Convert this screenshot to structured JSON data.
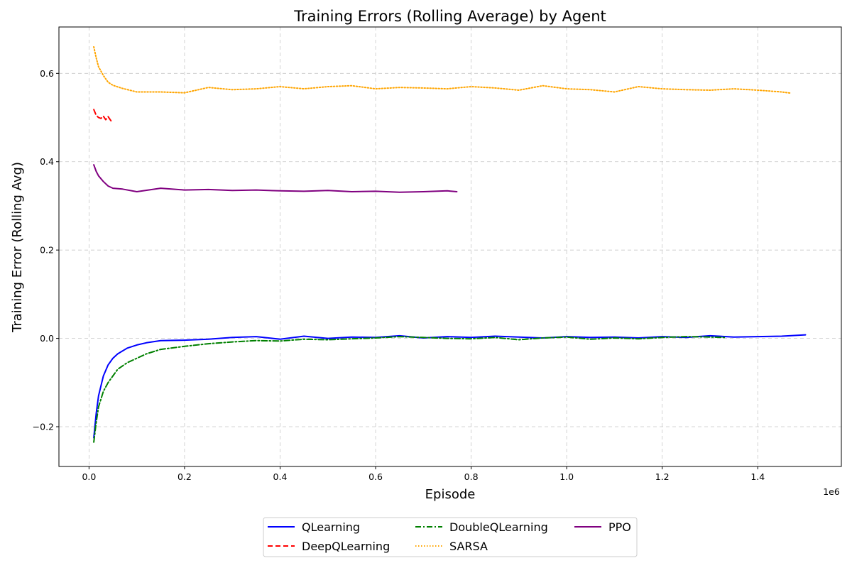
{
  "chart_data": {
    "type": "line",
    "title": "Training Errors (Rolling Average) by Agent",
    "xlabel": "Episode",
    "ylabel": "Training Error (Rolling Avg)",
    "x_offset_label": "1e6",
    "xlim": [
      -0.063,
      1.575
    ],
    "ylim": [
      -0.29,
      0.705
    ],
    "x_scale_factor": 1000000,
    "xticks": [
      0.0,
      0.2,
      0.4,
      0.6,
      0.8,
      1.0,
      1.2,
      1.4
    ],
    "xtick_labels": [
      "0.0",
      "0.2",
      "0.4",
      "0.6",
      "0.8",
      "1.0",
      "1.2",
      "1.4"
    ],
    "yticks": [
      -0.2,
      0.0,
      0.2,
      0.4,
      0.6
    ],
    "ytick_labels": [
      "−0.2",
      "0.0",
      "0.2",
      "0.4",
      "0.6"
    ],
    "grid": true,
    "legend_position": "below-center",
    "series": [
      {
        "name": "QLearning",
        "color": "#0000ff",
        "linestyle": "solid",
        "x": [
          0.01,
          0.015,
          0.02,
          0.03,
          0.04,
          0.05,
          0.06,
          0.08,
          0.1,
          0.12,
          0.15,
          0.2,
          0.25,
          0.3,
          0.35,
          0.4,
          0.45,
          0.5,
          0.55,
          0.6,
          0.65,
          0.7,
          0.75,
          0.8,
          0.85,
          0.9,
          0.95,
          1.0,
          1.05,
          1.1,
          1.15,
          1.2,
          1.25,
          1.3,
          1.35,
          1.4,
          1.45,
          1.5
        ],
        "y": [
          -0.225,
          -0.17,
          -0.13,
          -0.085,
          -0.06,
          -0.045,
          -0.035,
          -0.022,
          -0.015,
          -0.01,
          -0.005,
          -0.004,
          -0.002,
          0.002,
          0.004,
          -0.002,
          0.005,
          0.0,
          0.003,
          0.002,
          0.006,
          0.001,
          0.004,
          0.002,
          0.005,
          0.003,
          0.001,
          0.004,
          0.002,
          0.003,
          0.001,
          0.004,
          0.002,
          0.006,
          0.003,
          0.004,
          0.005,
          0.008
        ]
      },
      {
        "name": "DeepQLearning",
        "color": "#ff0000",
        "linestyle": "dashed",
        "x": [
          0.01,
          0.015,
          0.02,
          0.025,
          0.03,
          0.035,
          0.04,
          0.045,
          0.048
        ],
        "y": [
          0.518,
          0.505,
          0.5,
          0.498,
          0.503,
          0.495,
          0.502,
          0.494,
          0.49
        ]
      },
      {
        "name": "DoubleQLearning",
        "color": "#008000",
        "linestyle": "dashdot",
        "x": [
          0.01,
          0.015,
          0.02,
          0.03,
          0.04,
          0.05,
          0.06,
          0.08,
          0.1,
          0.12,
          0.15,
          0.2,
          0.25,
          0.3,
          0.35,
          0.4,
          0.45,
          0.5,
          0.55,
          0.6,
          0.65,
          0.7,
          0.75,
          0.8,
          0.85,
          0.9,
          0.95,
          1.0,
          1.05,
          1.1,
          1.15,
          1.2,
          1.25,
          1.3,
          1.33
        ],
        "y": [
          -0.235,
          -0.19,
          -0.155,
          -0.12,
          -0.1,
          -0.085,
          -0.07,
          -0.055,
          -0.045,
          -0.035,
          -0.025,
          -0.018,
          -0.012,
          -0.008,
          -0.005,
          -0.006,
          -0.002,
          -0.003,
          -0.001,
          0.001,
          0.004,
          0.002,
          0.0,
          -0.001,
          0.002,
          -0.003,
          0.001,
          0.003,
          -0.002,
          0.001,
          -0.001,
          0.002,
          0.004,
          0.003,
          0.002
        ]
      },
      {
        "name": "SARSA",
        "color": "#ffa500",
        "linestyle": "dotted",
        "x": [
          0.01,
          0.015,
          0.02,
          0.03,
          0.04,
          0.05,
          0.07,
          0.1,
          0.15,
          0.2,
          0.25,
          0.3,
          0.35,
          0.4,
          0.45,
          0.5,
          0.55,
          0.6,
          0.65,
          0.7,
          0.75,
          0.8,
          0.85,
          0.9,
          0.95,
          1.0,
          1.05,
          1.1,
          1.15,
          1.2,
          1.25,
          1.3,
          1.35,
          1.4,
          1.45,
          1.47
        ],
        "y": [
          0.66,
          0.635,
          0.615,
          0.595,
          0.58,
          0.573,
          0.566,
          0.558,
          0.558,
          0.556,
          0.568,
          0.563,
          0.565,
          0.57,
          0.565,
          0.57,
          0.572,
          0.565,
          0.568,
          0.567,
          0.565,
          0.57,
          0.567,
          0.562,
          0.572,
          0.565,
          0.563,
          0.558,
          0.57,
          0.565,
          0.563,
          0.562,
          0.565,
          0.562,
          0.558,
          0.555
        ]
      },
      {
        "name": "PPO",
        "color": "#800080",
        "linestyle": "solid",
        "x": [
          0.01,
          0.015,
          0.02,
          0.03,
          0.04,
          0.05,
          0.07,
          0.1,
          0.15,
          0.2,
          0.25,
          0.3,
          0.35,
          0.4,
          0.45,
          0.5,
          0.55,
          0.6,
          0.65,
          0.7,
          0.75,
          0.77
        ],
        "y": [
          0.393,
          0.378,
          0.368,
          0.355,
          0.345,
          0.34,
          0.338,
          0.332,
          0.34,
          0.336,
          0.337,
          0.335,
          0.336,
          0.334,
          0.333,
          0.335,
          0.332,
          0.333,
          0.331,
          0.332,
          0.334,
          0.332
        ]
      }
    ]
  }
}
